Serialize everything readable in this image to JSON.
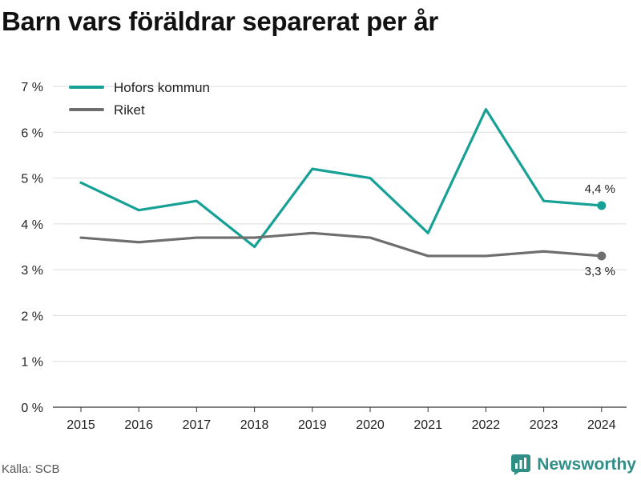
{
  "title": "Barn vars föräldrar separerat per år",
  "source": "Källa: SCB",
  "brand": "Newsworthy",
  "colors": {
    "hofors": "#17a096",
    "riket": "#6e6e6e",
    "grid": "#dddddd",
    "brand": "#2f8f87"
  },
  "chart_data": {
    "type": "line",
    "title": "Barn vars föräldrar separerat per år",
    "x": [
      "2015",
      "2016",
      "2017",
      "2018",
      "2019",
      "2020",
      "2021",
      "2022",
      "2023",
      "2024"
    ],
    "series": [
      {
        "name": "Hofors kommun",
        "color": "#17a096",
        "values": [
          4.9,
          4.3,
          4.5,
          3.5,
          5.2,
          5.0,
          3.8,
          6.5,
          4.5,
          4.4
        ],
        "end_label": "4,4 %"
      },
      {
        "name": "Riket",
        "color": "#6e6e6e",
        "values": [
          3.7,
          3.6,
          3.7,
          3.7,
          3.8,
          3.7,
          3.3,
          3.3,
          3.4,
          3.3
        ],
        "end_label": "3,3 %"
      }
    ],
    "y_ticks": [
      {
        "value": 0,
        "label": "0 %"
      },
      {
        "value": 1,
        "label": "1 %"
      },
      {
        "value": 2,
        "label": "2 %"
      },
      {
        "value": 3,
        "label": "3 %"
      },
      {
        "value": 4,
        "label": "4 %"
      },
      {
        "value": 5,
        "label": "5 %"
      },
      {
        "value": 6,
        "label": "6 %"
      },
      {
        "value": 7,
        "label": "7 %"
      }
    ],
    "ylim": [
      0,
      7
    ],
    "grid": true,
    "legend_position": "top-left"
  }
}
